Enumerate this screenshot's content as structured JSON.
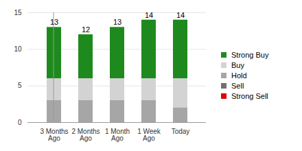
{
  "chart_data": {
    "type": "bar",
    "categories": [
      "3 Months Ago",
      "2 Months Ago",
      "1 Month Ago",
      "1 Week Ago",
      "Today"
    ],
    "series": [
      {
        "name": "Strong Buy",
        "color": "#1e8a1e",
        "values": [
          7,
          6,
          7,
          8,
          8
        ]
      },
      {
        "name": "Buy",
        "color": "#d3d3d3",
        "values": [
          3,
          3,
          3,
          3,
          4
        ]
      },
      {
        "name": "Hold",
        "color": "#a6a6a6",
        "values": [
          3,
          3,
          3,
          3,
          2
        ]
      },
      {
        "name": "Sell",
        "color": "#707070",
        "values": [
          0,
          0,
          0,
          0,
          0
        ]
      },
      {
        "name": "Strong Sell",
        "color": "#e00000",
        "values": [
          0,
          0,
          0,
          0,
          0
        ]
      }
    ],
    "totals": [
      13,
      12,
      13,
      14,
      14
    ],
    "ylim": [
      0,
      15
    ],
    "yticks": [
      0,
      5,
      10,
      15
    ],
    "stacked": true,
    "grid": true,
    "legend": "right"
  }
}
